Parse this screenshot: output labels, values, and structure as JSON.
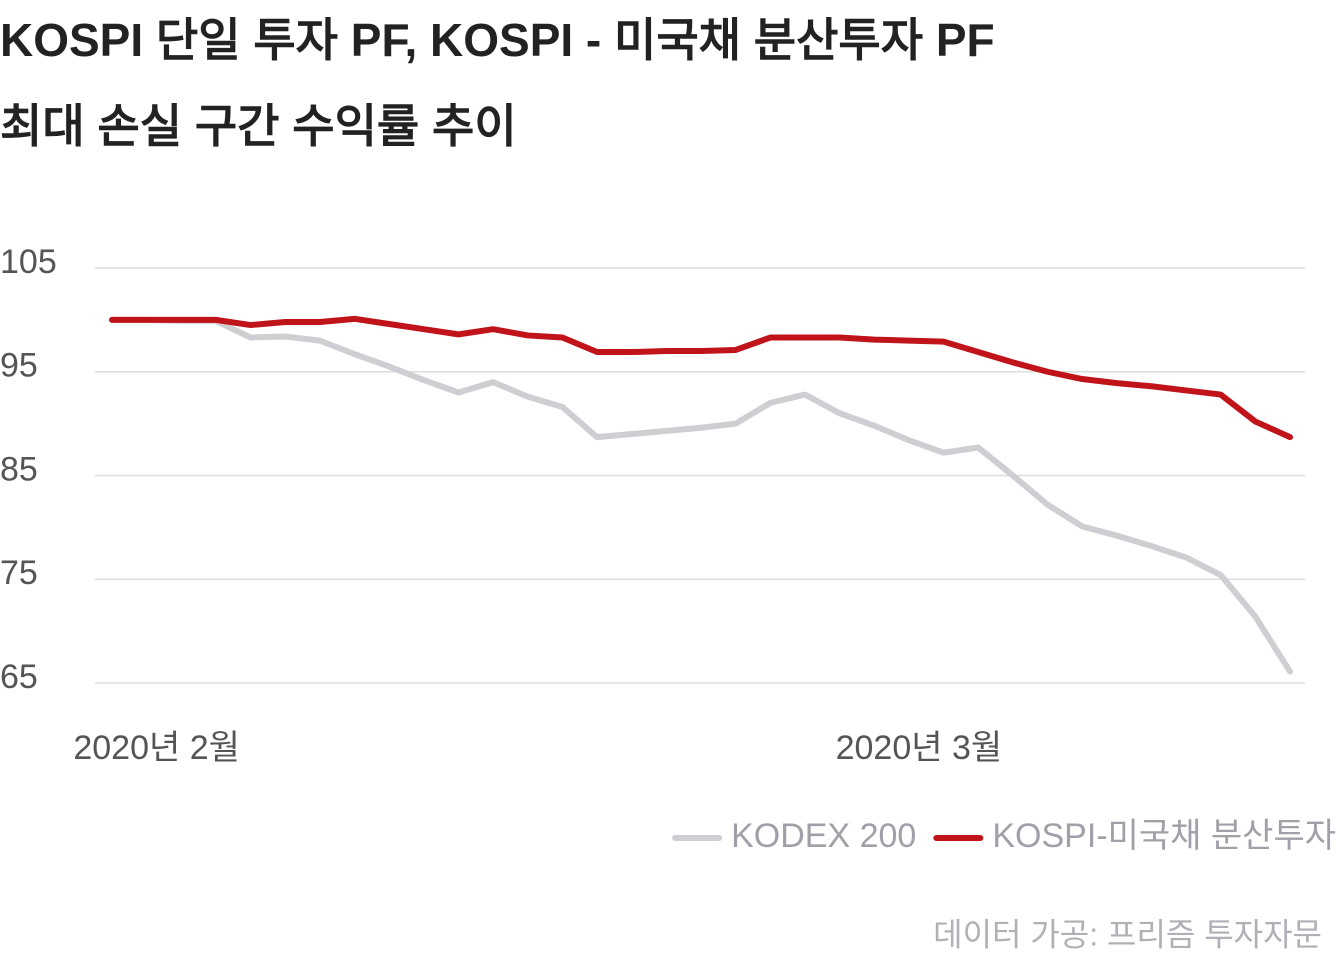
{
  "chart_data": {
    "type": "line",
    "title": "KOSPI 단일 투자 PF, KOSPI - 미국채 분산투자 PF",
    "subtitle": "최대 손실 구간 수익률 추이",
    "source": "데이터 가공: 프리즘 투자자문",
    "categories": [
      null,
      "2020년 2월",
      null,
      null,
      null,
      null,
      null,
      null,
      null,
      null,
      null,
      null,
      null,
      null,
      null,
      null,
      null,
      null,
      null,
      null,
      null,
      null,
      null,
      "2020년 3월",
      null,
      null,
      null,
      null,
      null,
      null,
      null,
      null,
      null,
      null,
      null
    ],
    "series": [
      {
        "name": "KODEX 200",
        "color": "#cfcfd3",
        "values": [
          100,
          100,
          99.9,
          99.9,
          98.3,
          98.4,
          98.0,
          96.7,
          95.5,
          94.2,
          93.0,
          94.0,
          92.6,
          91.6,
          88.7,
          89.0,
          89.3,
          89.6,
          90.0,
          92.0,
          92.8,
          91.0,
          89.8,
          88.4,
          87.2,
          87.7,
          85.0,
          82.2,
          80.1,
          79.2,
          78.2,
          77.1,
          75.4,
          71.4,
          66.1
        ]
      },
      {
        "name": "KOSPI-미국채 분산투자",
        "color": "#c0141a",
        "values": [
          100,
          100,
          100,
          100,
          99.5,
          99.8,
          99.8,
          100.1,
          99.6,
          99.1,
          98.6,
          99.1,
          98.5,
          98.3,
          96.9,
          96.9,
          97.0,
          97.0,
          97.1,
          98.3,
          98.3,
          98.3,
          98.1,
          98.0,
          97.9,
          96.9,
          95.9,
          95.0,
          94.3,
          93.9,
          93.6,
          93.2,
          92.8,
          90.2,
          88.7
        ]
      }
    ],
    "ylim": [
      65,
      105
    ],
    "yticks": [
      65,
      75,
      85,
      95,
      105
    ],
    "grid": true,
    "legend": "bottom-right"
  }
}
